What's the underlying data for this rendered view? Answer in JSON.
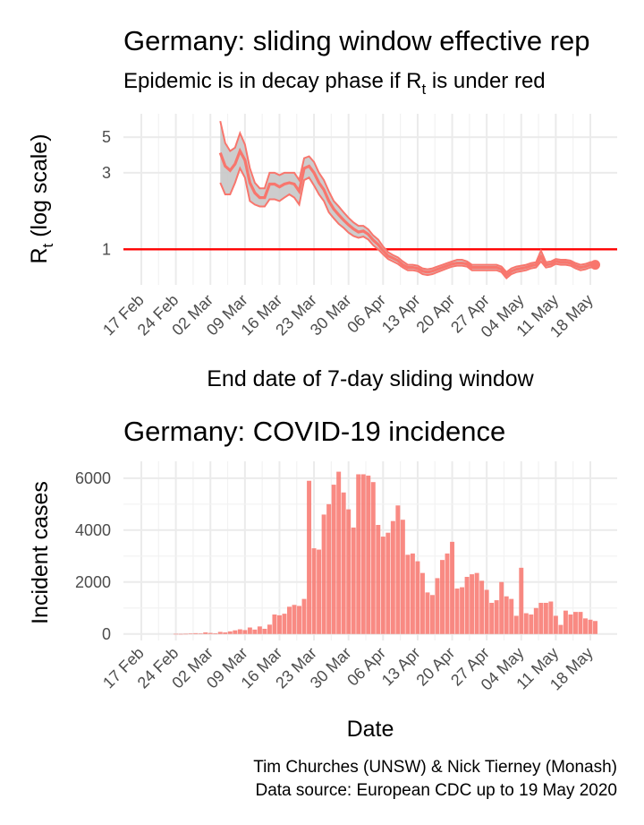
{
  "charts": [
    {
      "title": "Germany: sliding window effective rep",
      "subtitle_before": "Epidemic is in decay phase if R",
      "subtitle_sub": "t",
      "subtitle_after": "  is under red",
      "ylabel_main": "R",
      "ylabel_sub": "t",
      "ylabel_rest": " (log scale)",
      "xlabel": "End date of 7-day sliding window"
    },
    {
      "title": "Germany: COVID-19 incidence",
      "ylabel": "Incident cases",
      "xlabel": "Date"
    }
  ],
  "caption": {
    "line1": "Tim Churches (UNSW) & Nick Tierney (Monash)",
    "line2": "Data source: European CDC up to 19 May 2020"
  },
  "colors": {
    "series": "#F8766D",
    "ribbon": "#c8c8c8",
    "reference": "#ff0000"
  },
  "chart_data": [
    {
      "type": "line",
      "scale_y": "log",
      "x_ticks": [
        "17 Feb",
        "24 Feb",
        "02 Mar",
        "09 Mar",
        "16 Mar",
        "23 Mar",
        "30 Mar",
        "06 Apr",
        "13 Apr",
        "20 Apr",
        "27 Apr",
        "04 May",
        "11 May",
        "18 May"
      ],
      "y_ticks": [
        1,
        3,
        5
      ],
      "y_tick_labels": [
        "1",
        "3",
        "5"
      ],
      "ylim": [
        0.6,
        7
      ],
      "reference_line": 1,
      "x": [
        "2020-03-04",
        "2020-03-05",
        "2020-03-06",
        "2020-03-07",
        "2020-03-08",
        "2020-03-09",
        "2020-03-10",
        "2020-03-11",
        "2020-03-12",
        "2020-03-13",
        "2020-03-14",
        "2020-03-15",
        "2020-03-16",
        "2020-03-17",
        "2020-03-18",
        "2020-03-19",
        "2020-03-20",
        "2020-03-21",
        "2020-03-22",
        "2020-03-23",
        "2020-03-24",
        "2020-03-25",
        "2020-03-26",
        "2020-03-27",
        "2020-03-28",
        "2020-03-29",
        "2020-03-30",
        "2020-03-31",
        "2020-04-01",
        "2020-04-02",
        "2020-04-03",
        "2020-04-04",
        "2020-04-05",
        "2020-04-06",
        "2020-04-07",
        "2020-04-08",
        "2020-04-09",
        "2020-04-10",
        "2020-04-11",
        "2020-04-12",
        "2020-04-13",
        "2020-04-14",
        "2020-04-15",
        "2020-04-16",
        "2020-04-17",
        "2020-04-18",
        "2020-04-19",
        "2020-04-20",
        "2020-04-21",
        "2020-04-22",
        "2020-04-23",
        "2020-04-24",
        "2020-04-25",
        "2020-04-26",
        "2020-04-27",
        "2020-04-28",
        "2020-04-29",
        "2020-04-30",
        "2020-05-01",
        "2020-05-02",
        "2020-05-03",
        "2020-05-04",
        "2020-05-05",
        "2020-05-06",
        "2020-05-07",
        "2020-05-08",
        "2020-05-09",
        "2020-05-10",
        "2020-05-11",
        "2020-05-12",
        "2020-05-13",
        "2020-05-14",
        "2020-05-15",
        "2020-05-16",
        "2020-05-17",
        "2020-05-18",
        "2020-05-19"
      ],
      "series": [
        {
          "role": "upper",
          "values": [
            6.3,
            4.6,
            4.1,
            4.3,
            5.3,
            4.5,
            3.2,
            2.6,
            2.4,
            2.4,
            3.0,
            3.0,
            2.9,
            3.0,
            3.0,
            3.0,
            2.7,
            3.7,
            3.8,
            3.5,
            3.0,
            2.7,
            2.3,
            2.0,
            1.85,
            1.7,
            1.57,
            1.47,
            1.4,
            1.4,
            1.33,
            1.22,
            1.15,
            1.04,
            0.96,
            0.92,
            0.89,
            0.84,
            0.8,
            0.8,
            0.79,
            0.76,
            0.75,
            0.76,
            0.78,
            0.8,
            0.82,
            0.84,
            0.86,
            0.86,
            0.84,
            0.8,
            0.8,
            0.8,
            0.8,
            0.8,
            0.8,
            0.78,
            0.72,
            0.76,
            0.78,
            0.79,
            0.8,
            0.82,
            0.83,
            0.98,
            0.83,
            0.84,
            0.87,
            0.86,
            0.86,
            0.85,
            0.82,
            0.8,
            0.81,
            0.83,
            0.84
          ]
        },
        {
          "role": "mean",
          "values": [
            4.0,
            3.3,
            3.1,
            3.4,
            4.1,
            3.6,
            2.6,
            2.25,
            2.1,
            2.1,
            2.55,
            2.55,
            2.45,
            2.55,
            2.6,
            2.55,
            2.3,
            3.2,
            3.3,
            3.0,
            2.6,
            2.35,
            2.0,
            1.78,
            1.64,
            1.52,
            1.42,
            1.34,
            1.28,
            1.3,
            1.24,
            1.14,
            1.07,
            0.98,
            0.91,
            0.88,
            0.85,
            0.8,
            0.77,
            0.77,
            0.76,
            0.73,
            0.72,
            0.73,
            0.75,
            0.77,
            0.79,
            0.81,
            0.82,
            0.82,
            0.81,
            0.77,
            0.77,
            0.77,
            0.77,
            0.77,
            0.77,
            0.75,
            0.69,
            0.73,
            0.75,
            0.76,
            0.77,
            0.79,
            0.8,
            0.9,
            0.8,
            0.81,
            0.84,
            0.83,
            0.83,
            0.82,
            0.79,
            0.77,
            0.78,
            0.8,
            0.8
          ]
        },
        {
          "role": "lower",
          "values": [
            2.6,
            2.2,
            2.2,
            2.6,
            3.2,
            2.8,
            2.0,
            1.9,
            1.85,
            1.85,
            2.05,
            2.05,
            2.0,
            2.1,
            2.2,
            2.1,
            1.9,
            2.7,
            2.8,
            2.5,
            2.2,
            2.0,
            1.7,
            1.56,
            1.44,
            1.36,
            1.27,
            1.21,
            1.18,
            1.2,
            1.15,
            1.06,
            1.0,
            0.93,
            0.87,
            0.84,
            0.81,
            0.77,
            0.74,
            0.74,
            0.73,
            0.7,
            0.69,
            0.7,
            0.72,
            0.74,
            0.76,
            0.78,
            0.79,
            0.79,
            0.78,
            0.74,
            0.74,
            0.74,
            0.74,
            0.74,
            0.74,
            0.72,
            0.66,
            0.7,
            0.72,
            0.73,
            0.74,
            0.76,
            0.77,
            0.84,
            0.77,
            0.78,
            0.81,
            0.8,
            0.8,
            0.79,
            0.76,
            0.74,
            0.75,
            0.77,
            0.77
          ]
        }
      ]
    },
    {
      "type": "bar",
      "x_ticks": [
        "17 Feb",
        "24 Feb",
        "02 Mar",
        "09 Mar",
        "16 Mar",
        "23 Mar",
        "30 Mar",
        "06 Apr",
        "13 Apr",
        "20 Apr",
        "27 Apr",
        "04 May",
        "11 May",
        "18 May"
      ],
      "y_ticks": [
        0,
        2000,
        4000,
        6000
      ],
      "y_tick_labels": [
        "0",
        "2000",
        "4000",
        "6000"
      ],
      "ylim": [
        -250,
        6650
      ],
      "x": [
        "2020-02-24",
        "2020-02-25",
        "2020-02-26",
        "2020-02-27",
        "2020-02-28",
        "2020-02-29",
        "2020-03-01",
        "2020-03-02",
        "2020-03-03",
        "2020-03-04",
        "2020-03-05",
        "2020-03-06",
        "2020-03-07",
        "2020-03-08",
        "2020-03-09",
        "2020-03-10",
        "2020-03-11",
        "2020-03-12",
        "2020-03-13",
        "2020-03-14",
        "2020-03-15",
        "2020-03-16",
        "2020-03-17",
        "2020-03-18",
        "2020-03-19",
        "2020-03-20",
        "2020-03-21",
        "2020-03-22",
        "2020-03-23",
        "2020-03-24",
        "2020-03-25",
        "2020-03-26",
        "2020-03-27",
        "2020-03-28",
        "2020-03-29",
        "2020-03-30",
        "2020-03-31",
        "2020-04-01",
        "2020-04-02",
        "2020-04-03",
        "2020-04-04",
        "2020-04-05",
        "2020-04-06",
        "2020-04-07",
        "2020-04-08",
        "2020-04-09",
        "2020-04-10",
        "2020-04-11",
        "2020-04-12",
        "2020-04-13",
        "2020-04-14",
        "2020-04-15",
        "2020-04-16",
        "2020-04-17",
        "2020-04-18",
        "2020-04-19",
        "2020-04-20",
        "2020-04-21",
        "2020-04-22",
        "2020-04-23",
        "2020-04-24",
        "2020-04-25",
        "2020-04-26",
        "2020-04-27",
        "2020-04-28",
        "2020-04-29",
        "2020-04-30",
        "2020-05-01",
        "2020-05-02",
        "2020-05-03",
        "2020-05-04",
        "2020-05-05",
        "2020-05-06",
        "2020-05-07",
        "2020-05-08",
        "2020-05-09",
        "2020-05-10",
        "2020-05-11",
        "2020-05-12",
        "2020-05-13",
        "2020-05-14",
        "2020-05-15",
        "2020-05-16",
        "2020-05-17",
        "2020-05-18",
        "2020-05-19"
      ],
      "values": [
        4,
        2,
        6,
        18,
        30,
        15,
        60,
        40,
        25,
        80,
        60,
        100,
        140,
        180,
        150,
        250,
        170,
        290,
        200,
        360,
        750,
        720,
        780,
        1050,
        1120,
        1080,
        1350,
        5900,
        3300,
        3250,
        4600,
        5000,
        5750,
        6250,
        5450,
        4800,
        4100,
        6150,
        6150,
        6100,
        5850,
        4200,
        3750,
        3900,
        4350,
        4950,
        4400,
        3050,
        3100,
        2800,
        2350,
        1600,
        1500,
        2150,
        2850,
        3100,
        3550,
        1750,
        1800,
        2200,
        2300,
        2350,
        2050,
        1700,
        1200,
        1300,
        2000,
        1450,
        1350,
        700,
        2550,
        800,
        750,
        1000,
        1200,
        1200,
        1250,
        700,
        350,
        900,
        750,
        850,
        850,
        600,
        550,
        500
      ]
    }
  ]
}
